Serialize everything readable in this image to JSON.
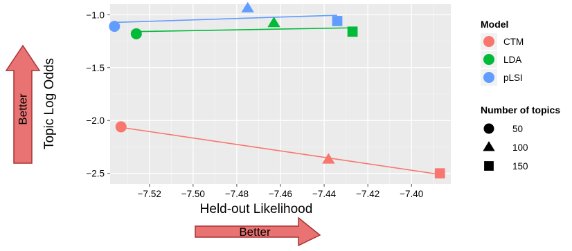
{
  "colors": {
    "panel_bg": "#ebebeb",
    "grid_major": "#ffffff",
    "grid_minor": "#f5f5f5",
    "arrow_fill": "#e97373",
    "arrow_stroke": "#a83232"
  },
  "annotations": {
    "better_vertical": "Better",
    "better_horizontal": "Better"
  },
  "chart_data": {
    "type": "scatter",
    "title": "",
    "xlabel": "Held-out Likelihood",
    "ylabel": "Topic Log Odds",
    "xlim": [
      -7.538,
      -7.382
    ],
    "ylim": [
      -2.6,
      -0.9
    ],
    "x_ticks": [
      -7.52,
      -7.5,
      -7.48,
      -7.46,
      -7.44,
      -7.42,
      -7.4
    ],
    "x_tick_labels": [
      "−7.52",
      "−7.50",
      "−7.48",
      "−7.46",
      "−7.44",
      "−7.42",
      "−7.40"
    ],
    "y_ticks": [
      -1.0,
      -1.5,
      -2.0,
      -2.5
    ],
    "y_tick_labels": [
      "−1.0",
      "−1.5",
      "−2.0",
      "−2.5"
    ],
    "grid": true,
    "legend_placement": "right",
    "legend_color": {
      "title": "Model",
      "entries": [
        {
          "label": "CTM",
          "color": "#f8766d"
        },
        {
          "label": "LDA",
          "color": "#00ba38"
        },
        {
          "label": "pLSI",
          "color": "#619cff"
        }
      ]
    },
    "legend_shape": {
      "title": "Number of topics",
      "entries": [
        {
          "label": "50",
          "shape": "circle"
        },
        {
          "label": "100",
          "shape": "triangle"
        },
        {
          "label": "150",
          "shape": "square"
        }
      ]
    },
    "series": [
      {
        "name": "CTM",
        "color": "#f8766d",
        "points": [
          {
            "x": -7.533,
            "y": -2.06,
            "topics": "50"
          },
          {
            "x": -7.438,
            "y": -2.37,
            "topics": "100"
          },
          {
            "x": -7.387,
            "y": -2.5,
            "topics": "150"
          }
        ]
      },
      {
        "name": "LDA",
        "color": "#00ba38",
        "points": [
          {
            "x": -7.526,
            "y": -1.18,
            "topics": "50"
          },
          {
            "x": -7.463,
            "y": -1.08,
            "topics": "100"
          },
          {
            "x": -7.427,
            "y": -1.16,
            "topics": "150"
          }
        ]
      },
      {
        "name": "pLSI",
        "color": "#619cff",
        "points": [
          {
            "x": -7.536,
            "y": -1.11,
            "topics": "50"
          },
          {
            "x": -7.475,
            "y": -0.94,
            "topics": "100"
          },
          {
            "x": -7.434,
            "y": -1.06,
            "topics": "150"
          }
        ]
      }
    ],
    "trend_lines": true
  }
}
